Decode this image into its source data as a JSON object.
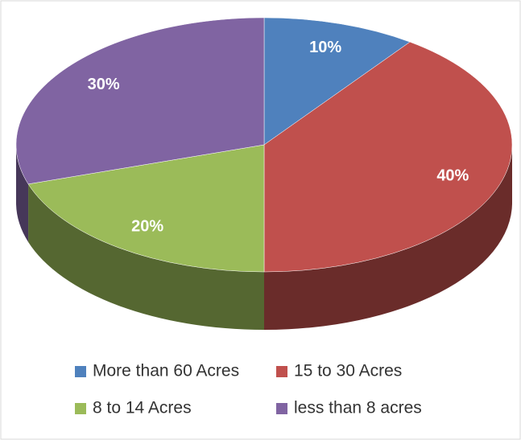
{
  "chart_data": {
    "type": "pie",
    "categories": [
      "More than 60 Acres",
      "15 to 30 Acres",
      "8 to 14 Acres",
      "less than 8 acres"
    ],
    "values": [
      10,
      40,
      20,
      30
    ],
    "value_labels": [
      "10%",
      "40%",
      "20%",
      "30%"
    ],
    "colors": [
      "#4f81bd",
      "#c0504d",
      "#9bbb59",
      "#8064a2"
    ],
    "legend": "bottom"
  }
}
